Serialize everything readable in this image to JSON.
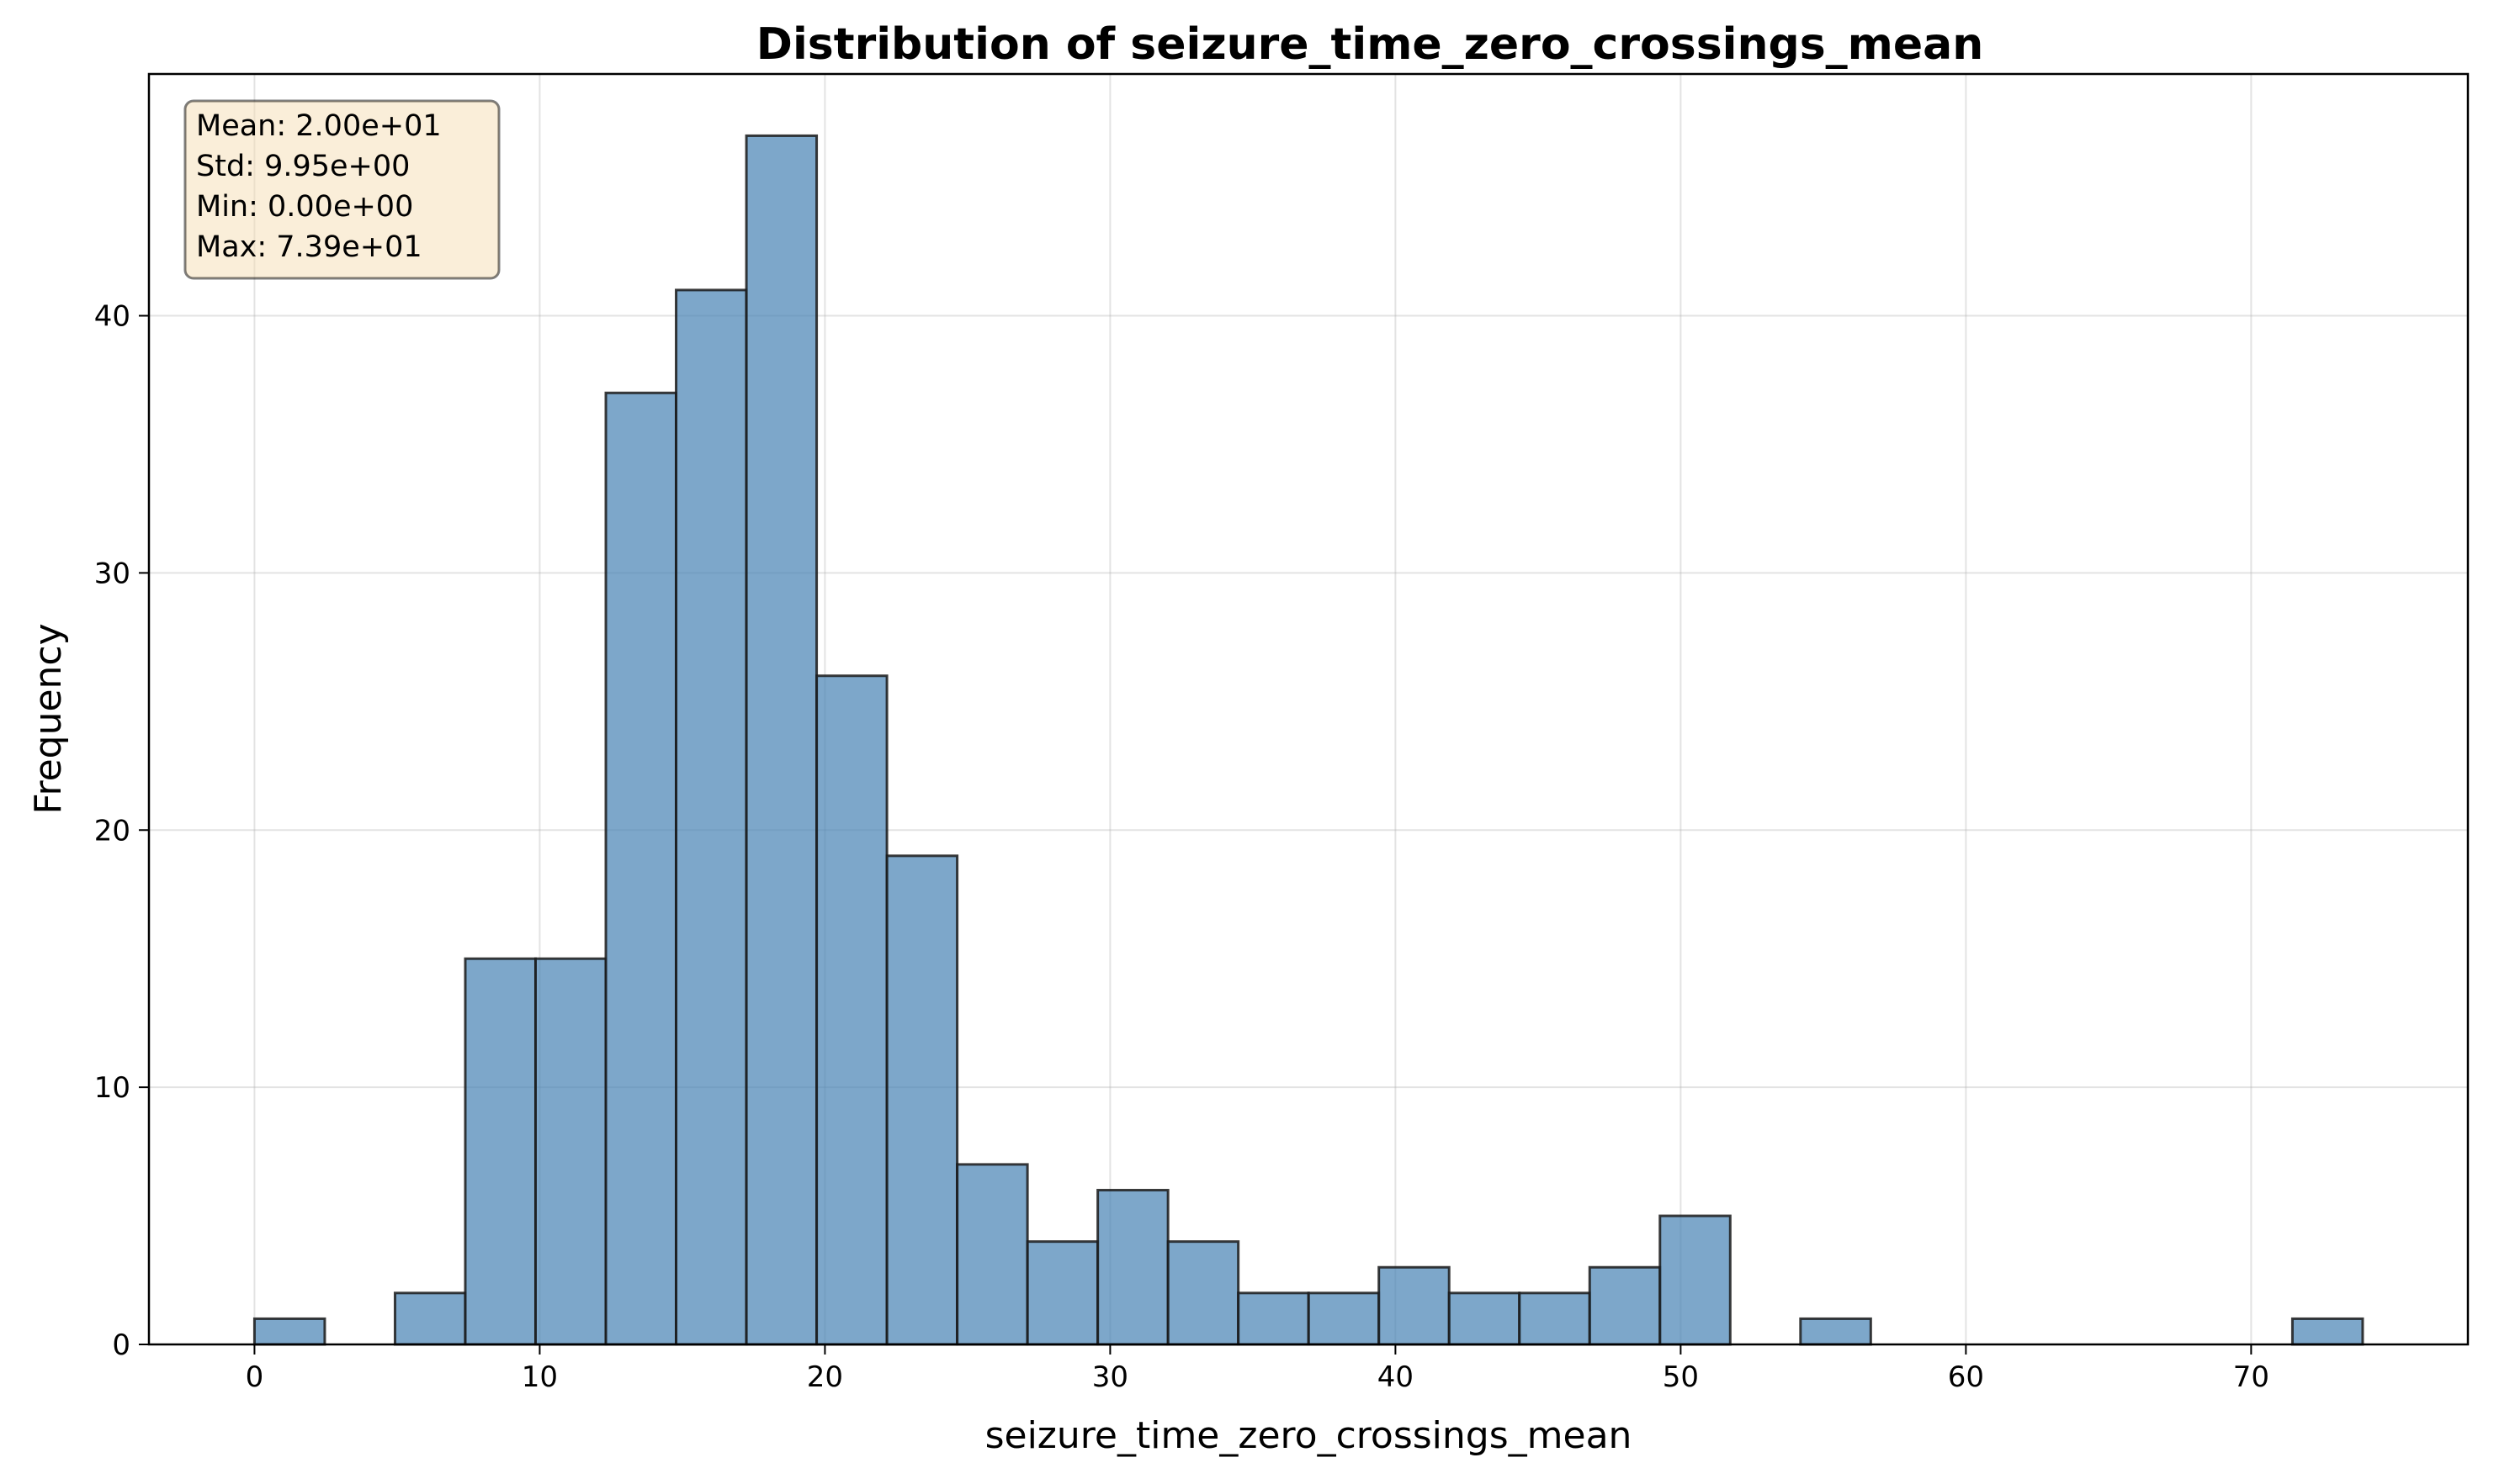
{
  "chart_data": {
    "type": "bar",
    "title": "Distribution of seizure_time_zero_crossings_mean",
    "xlabel": "seizure_time_zero_crossings_mean",
    "ylabel": "Frequency",
    "xlim": [
      -3.7,
      77.6
    ],
    "ylim": [
      0,
      49.4
    ],
    "xticks": [
      0,
      10,
      20,
      30,
      40,
      50,
      60,
      70
    ],
    "yticks": [
      0,
      10,
      20,
      30,
      40
    ],
    "grid": true,
    "bar_color": "#4682b4",
    "bar_edge_color": "#000000",
    "bins": {
      "start": 0,
      "width": 2.4637,
      "counts": [
        1,
        0,
        2,
        15,
        15,
        37,
        41,
        47,
        26,
        19,
        7,
        4,
        6,
        4,
        2,
        2,
        3,
        2,
        2,
        3,
        5,
        0,
        1,
        0,
        0,
        0,
        0,
        0,
        0,
        1
      ]
    },
    "stats_box": {
      "lines": [
        "Mean: 2.00e+01",
        "Std: 9.95e+00",
        "Min: 0.00e+00",
        "Max: 7.39e+01"
      ],
      "position": "top-left",
      "background": "#f5deb3",
      "border": "#000000"
    }
  }
}
